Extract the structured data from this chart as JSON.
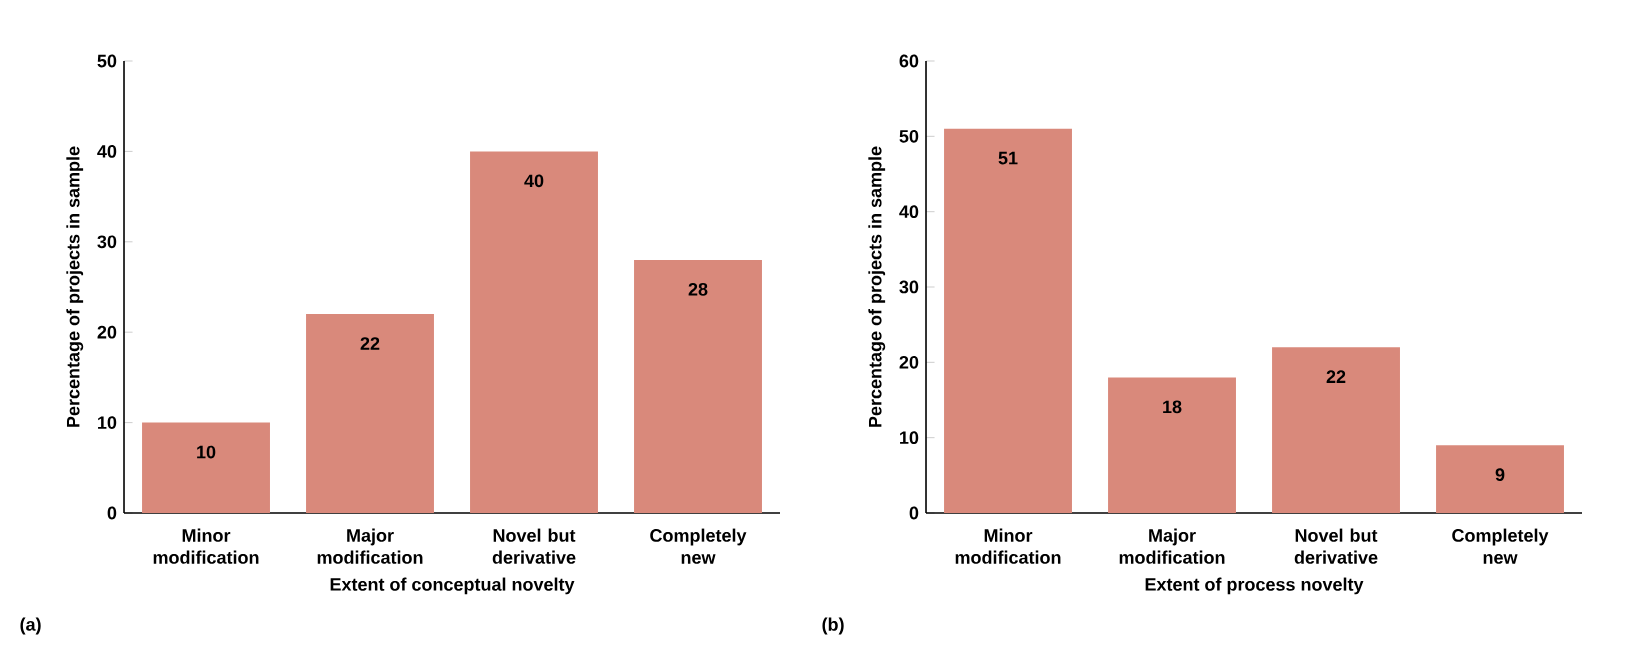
{
  "chart_data": [
    {
      "type": "bar",
      "categories": [
        "Minor modification",
        "Major modification",
        "Novel but derivative",
        "Completely new"
      ],
      "values": [
        10,
        22,
        40,
        28
      ],
      "color": "#d9897b",
      "xlabel": "Extent of conceptual novelty",
      "ylabel": "Percentage of projects in sample",
      "ylim": [
        0,
        50
      ],
      "yticks": [
        0,
        10,
        20,
        30,
        40,
        50
      ],
      "data_labels": true,
      "annotations": [
        "(a)"
      ]
    },
    {
      "type": "bar",
      "categories": [
        "Minor modification",
        "Major modification",
        "Novel but derivative",
        "Completely new"
      ],
      "values": [
        51,
        18,
        22,
        9
      ],
      "color": "#d9897b",
      "xlabel": "Extent of process novelty",
      "ylabel": "Percentage of projects in sample",
      "ylim": [
        0,
        60
      ],
      "yticks": [
        0,
        10,
        20,
        30,
        40,
        50,
        60
      ],
      "data_labels": true,
      "annotations": [
        "(b)"
      ]
    }
  ]
}
